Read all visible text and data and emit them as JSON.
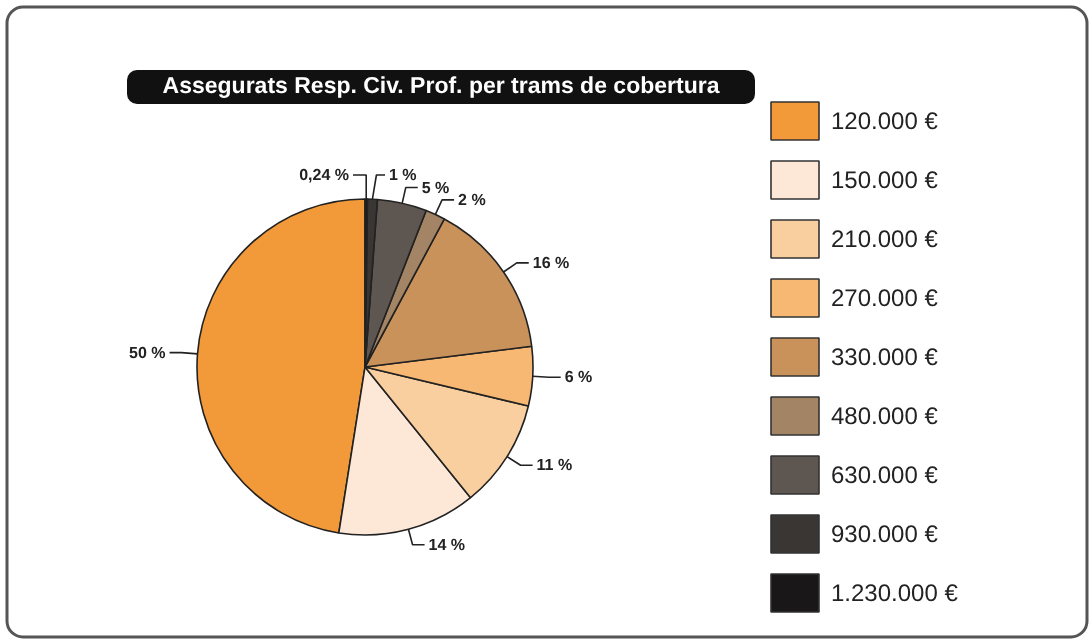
{
  "chart_data": {
    "type": "pie",
    "title": "Assegurats Resp. Civ. Prof. per trams de cobertura",
    "categories": [
      "120.000 €",
      "150.000 €",
      "210.000 €",
      "270.000 €",
      "330.000 €",
      "480.000 €",
      "630.000 €",
      "930.000 €",
      "1.230.000 €"
    ],
    "values": [
      50,
      14,
      11,
      6,
      16,
      2,
      5,
      1,
      0.24
    ],
    "colors": [
      "#f29a3a",
      "#fde8d8",
      "#f9cfa0",
      "#f7b874",
      "#c9925a",
      "#a38465",
      "#5e5650",
      "#3a3634",
      "#1a1718"
    ],
    "value_labels": [
      "50 %",
      "14 %",
      "11 %",
      "6 %",
      "16 %",
      "2 %",
      "5 %",
      "1 %",
      "0,24 %"
    ],
    "legend": "right"
  }
}
